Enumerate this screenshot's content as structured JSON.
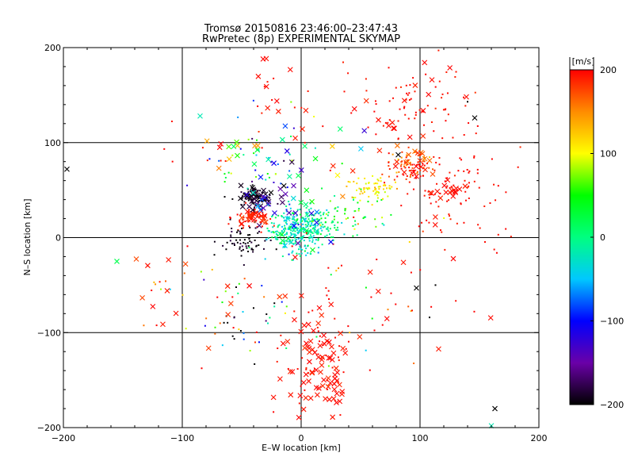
{
  "chart_data": {
    "type": "scatter",
    "title": "Tromsø 20150816 23:46:00–23:47:43",
    "subtitle": "RwPretec (8p) EXPERIMENTAL SKYMAP",
    "xlabel": "E–W location [km]",
    "ylabel": "N–S location [km]",
    "xlim": [
      -200,
      200
    ],
    "ylim": [
      -200,
      200
    ],
    "xticks": [
      -200,
      -100,
      0,
      100,
      200
    ],
    "yticks": [
      -200,
      -100,
      0,
      100,
      200
    ],
    "grid": true,
    "grid_lines": [
      -100,
      0,
      100
    ],
    "colorbar": {
      "label": "[m/s]",
      "min": -200,
      "max": 200,
      "ticks": [
        200,
        100,
        0,
        -100,
        -200
      ],
      "colormap": [
        "#000000",
        "#6a00a8",
        "#0000ff",
        "#00c8ff",
        "#00ff80",
        "#00ff00",
        "#ffff00",
        "#ff8c00",
        "#ff0000"
      ]
    },
    "marker_types": [
      "dot",
      "cross"
    ],
    "clusters": [
      {
        "center": [
          -3,
          8
        ],
        "spread": [
          12,
          12
        ],
        "count": 300,
        "v": -20,
        "v_spread": 25,
        "marker": "dot"
      },
      {
        "center": [
          15,
          15
        ],
        "spread": [
          12,
          8
        ],
        "count": 60,
        "v": 10,
        "v_spread": 20,
        "marker": "dot"
      },
      {
        "center": [
          35,
          25
        ],
        "spread": [
          20,
          10
        ],
        "count": 40,
        "v": 30,
        "v_spread": 40,
        "marker": "dot"
      },
      {
        "center": [
          60,
          52
        ],
        "spread": [
          12,
          6
        ],
        "count": 70,
        "v": 110,
        "v_spread": 20,
        "marker": "dot"
      },
      {
        "center": [
          93,
          76
        ],
        "spread": [
          10,
          8
        ],
        "count": 80,
        "v": 170,
        "v_spread": 25,
        "marker": "dot"
      },
      {
        "center": [
          95,
          140
        ],
        "spread": [
          25,
          25
        ],
        "count": 70,
        "v": 195,
        "v_spread": 5,
        "marker": "dot"
      },
      {
        "center": [
          130,
          50
        ],
        "spread": [
          20,
          20
        ],
        "count": 60,
        "v": 195,
        "v_spread": 5,
        "marker": "dot"
      },
      {
        "center": [
          -38,
          42
        ],
        "spread": [
          7,
          6
        ],
        "count": 60,
        "v": -195,
        "v_spread": 8,
        "marker": "dot"
      },
      {
        "center": [
          -42,
          20
        ],
        "spread": [
          8,
          6
        ],
        "count": 50,
        "v": 195,
        "v_spread": 5,
        "marker": "dot"
      },
      {
        "center": [
          -48,
          -5
        ],
        "spread": [
          10,
          10
        ],
        "count": 60,
        "v": -195,
        "v_spread": 8,
        "marker": "dot"
      },
      {
        "center": [
          -30,
          70
        ],
        "spread": [
          25,
          25
        ],
        "count": 50,
        "v": -40,
        "v_spread": 120,
        "marker": "dot"
      },
      {
        "center": [
          -30,
          130
        ],
        "spread": [
          35,
          40
        ],
        "count": 25,
        "v": 195,
        "v_spread": 5,
        "marker": "dot"
      },
      {
        "center": [
          -50,
          -80
        ],
        "spread": [
          20,
          20
        ],
        "count": 40,
        "v": -50,
        "v_spread": 150,
        "marker": "dot"
      },
      {
        "center": [
          15,
          -130
        ],
        "spread": [
          15,
          35
        ],
        "count": 40,
        "v": 195,
        "v_spread": 5,
        "marker": "dot"
      },
      {
        "center": [
          40,
          -60
        ],
        "spread": [
          40,
          40
        ],
        "count": 40,
        "v": 120,
        "v_spread": 90,
        "marker": "dot"
      },
      {
        "center": [
          -110,
          -60
        ],
        "spread": [
          25,
          30
        ],
        "count": 20,
        "v": 160,
        "v_spread": 60,
        "marker": "dot"
      },
      {
        "center": [
          150,
          20
        ],
        "spread": [
          35,
          40
        ],
        "count": 30,
        "v": 195,
        "v_spread": 5,
        "marker": "dot"
      },
      {
        "center": [
          15,
          -130
        ],
        "spread": [
          15,
          35
        ],
        "count": 80,
        "v": 195,
        "v_spread": 5,
        "marker": "cross"
      },
      {
        "center": [
          -38,
          42
        ],
        "spread": [
          6,
          6
        ],
        "count": 30,
        "v": -190,
        "v_spread": 10,
        "marker": "cross"
      },
      {
        "center": [
          -40,
          22
        ],
        "spread": [
          6,
          5
        ],
        "count": 20,
        "v": 190,
        "v_spread": 10,
        "marker": "cross"
      },
      {
        "center": [
          -20,
          45
        ],
        "spread": [
          15,
          15
        ],
        "count": 25,
        "v": -120,
        "v_spread": 60,
        "marker": "cross"
      },
      {
        "center": [
          -60,
          100
        ],
        "spread": [
          15,
          10
        ],
        "count": 12,
        "v": 150,
        "v_spread": 60,
        "marker": "cross"
      },
      {
        "center": [
          95,
          75
        ],
        "spread": [
          10,
          10
        ],
        "count": 20,
        "v": 180,
        "v_spread": 20,
        "marker": "cross"
      },
      {
        "center": [
          125,
          50
        ],
        "spread": [
          10,
          8
        ],
        "count": 15,
        "v": 195,
        "v_spread": 5,
        "marker": "cross"
      },
      {
        "center": [
          75,
          140
        ],
        "spread": [
          40,
          25
        ],
        "count": 20,
        "v": 195,
        "v_spread": 5,
        "marker": "cross"
      },
      {
        "center": [
          0,
          10
        ],
        "spread": [
          15,
          15
        ],
        "count": 20,
        "v": -30,
        "v_spread": 40,
        "marker": "cross"
      },
      {
        "center": [
          -100,
          -60
        ],
        "spread": [
          30,
          30
        ],
        "count": 15,
        "v": 190,
        "v_spread": 10,
        "marker": "cross"
      },
      {
        "center": [
          -30,
          150
        ],
        "spread": [
          20,
          30
        ],
        "count": 8,
        "v": 195,
        "v_spread": 5,
        "marker": "cross"
      },
      {
        "center": [
          20,
          80
        ],
        "spread": [
          30,
          20
        ],
        "count": 20,
        "v": 0,
        "v_spread": 200,
        "marker": "cross"
      },
      {
        "center": [
          60,
          -60
        ],
        "spread": [
          40,
          40
        ],
        "count": 12,
        "v": 195,
        "v_spread": 5,
        "marker": "cross"
      }
    ],
    "points": [
      {
        "x": -197,
        "y": 72,
        "v": -200,
        "marker": "cross"
      },
      {
        "x": -155,
        "y": -25,
        "v": 20,
        "marker": "cross"
      },
      {
        "x": -85,
        "y": 128,
        "v": -20,
        "marker": "cross"
      },
      {
        "x": -32,
        "y": 188,
        "v": 200,
        "marker": "cross"
      },
      {
        "x": 146,
        "y": 126,
        "v": -200,
        "marker": "cross"
      },
      {
        "x": 97,
        "y": -53,
        "v": -200,
        "marker": "cross"
      },
      {
        "x": 163,
        "y": -180,
        "v": -200,
        "marker": "cross"
      },
      {
        "x": 160,
        "y": -198,
        "v": -20,
        "marker": "cross"
      },
      {
        "x": 108,
        "y": -84,
        "v": -200,
        "marker": "dot"
      },
      {
        "x": 113,
        "y": -50,
        "v": -200,
        "marker": "dot"
      },
      {
        "x": 140,
        "y": 143,
        "v": -200,
        "marker": "dot"
      }
    ]
  }
}
